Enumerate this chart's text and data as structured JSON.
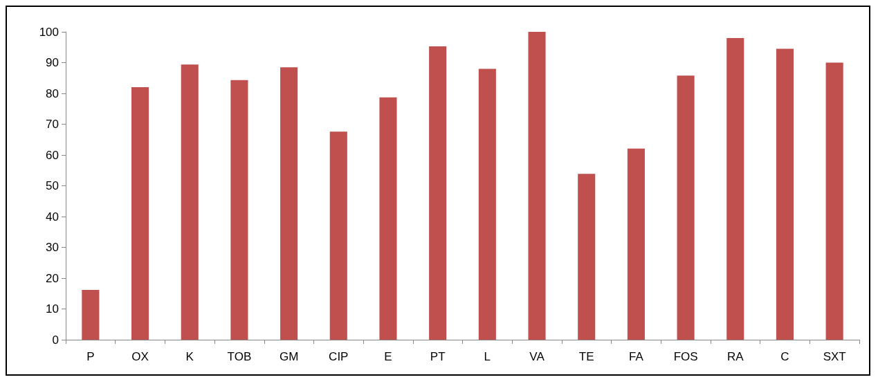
{
  "chart_data": {
    "type": "bar",
    "categories": [
      "P",
      "OX",
      "K",
      "TOB",
      "GM",
      "CIP",
      "E",
      "PT",
      "L",
      "VA",
      "TE",
      "FA",
      "FOS",
      "RA",
      "C",
      "SXT"
    ],
    "values": [
      16.2,
      82,
      89.4,
      84.3,
      88.5,
      67.6,
      78.7,
      95.3,
      88,
      100,
      53.9,
      62.1,
      85.8,
      98,
      94.5,
      90
    ],
    "color": "#c0504d",
    "ylim": [
      0,
      100
    ],
    "yticks": [
      0,
      10,
      20,
      30,
      40,
      50,
      60,
      70,
      80,
      90,
      100
    ]
  }
}
